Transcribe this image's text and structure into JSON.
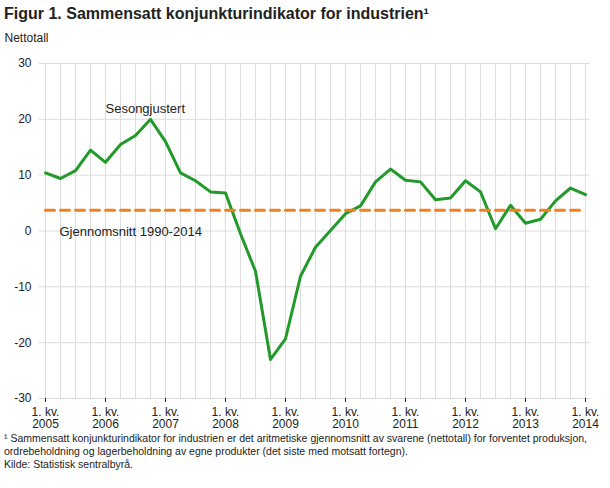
{
  "chart_data": {
    "type": "line",
    "title": "Figur 1. Sammensatt konjunkturindikator for industrien¹",
    "y_label": "Nettotall",
    "footnote": "¹ Sammensatt konjunkturindikator for industrien er det aritmetiske gjennomsnitt av svarene (nettotall) for forventet produksjon, ordrebeholdning og lagerbeholdning av egne produkter (det siste med motsatt fortegn).",
    "source": "Kilde: Statistisk sentralbyrå.",
    "categories": [
      "1. kv.\n2005",
      null,
      null,
      null,
      "1. kv.\n2006",
      null,
      null,
      null,
      "1. kv.\n2007",
      null,
      null,
      null,
      "1. kv.\n2008",
      null,
      null,
      null,
      "1. kv.\n2009",
      null,
      null,
      null,
      "1. kv.\n2010",
      null,
      null,
      null,
      "1. kv.\n2011",
      null,
      null,
      null,
      "1. kv.\n2012",
      null,
      null,
      null,
      "1. kv.\n2013",
      null,
      null,
      null,
      "1. kv.\n2014"
    ],
    "series": [
      {
        "name": "Sesongjustert",
        "color": "#229a2a",
        "line_style": "solid",
        "values": [
          10.4,
          9.4,
          10.8,
          14.5,
          12.3,
          15.5,
          17.1,
          20.0,
          16.0,
          10.4,
          9.0,
          7.0,
          6.8,
          -0.5,
          -7.2,
          -23.0,
          -19.3,
          -8.1,
          -2.9,
          0.1,
          3.1,
          4.5,
          8.8,
          11.1,
          9.1,
          8.8,
          5.6,
          5.9,
          9.0,
          7.0,
          0.4,
          4.6,
          1.4,
          2.1,
          5.4,
          7.7,
          6.5
        ]
      },
      {
        "name": "Gjennomsnitt 1990-2014",
        "color": "#f2801f",
        "line_style": "dashed",
        "values": [
          3.7,
          3.7,
          3.7,
          3.7,
          3.7,
          3.7,
          3.7,
          3.7,
          3.7,
          3.7,
          3.7,
          3.7,
          3.7,
          3.7,
          3.7,
          3.7,
          3.7,
          3.7,
          3.7,
          3.7,
          3.7,
          3.7,
          3.7,
          3.7,
          3.7,
          3.7,
          3.7,
          3.7,
          3.7,
          3.7,
          3.7,
          3.7,
          3.7,
          3.7,
          3.7,
          3.7,
          3.7
        ]
      }
    ],
    "ylim": [
      -30,
      30
    ],
    "yticks": [
      -30,
      -20,
      -10,
      0,
      10,
      20,
      30
    ],
    "grid": true
  }
}
